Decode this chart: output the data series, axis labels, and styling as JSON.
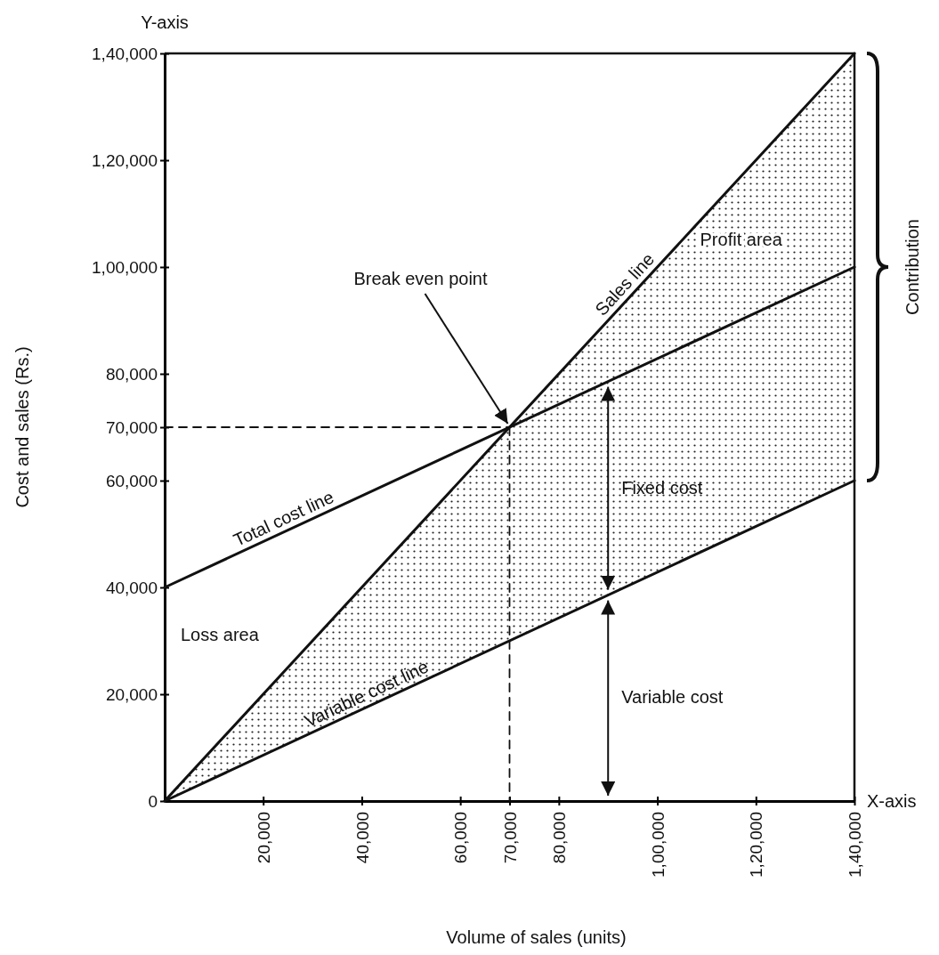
{
  "chart_data": {
    "type": "line",
    "xlabel": "Volume of sales (units)",
    "ylabel": "Cost and sales (Rs.)",
    "xlim": [
      0,
      140000
    ],
    "ylim": [
      0,
      140000
    ],
    "xticks": [
      {
        "value": 20000,
        "label": "20,000"
      },
      {
        "value": 40000,
        "label": "40,000"
      },
      {
        "value": 60000,
        "label": "60,000"
      },
      {
        "value": 70000,
        "label": "70,000"
      },
      {
        "value": 80000,
        "label": "80,000"
      },
      {
        "value": 100000,
        "label": "1,00,000"
      },
      {
        "value": 120000,
        "label": "1,20,000"
      },
      {
        "value": 140000,
        "label": "1,40,000"
      }
    ],
    "yticks": [
      0,
      {
        "value": 20000,
        "label": "20,000"
      },
      {
        "value": 40000,
        "label": "40,000"
      },
      {
        "value": 60000,
        "label": "60,000"
      },
      {
        "value": 70000,
        "label": "70,000"
      },
      {
        "value": 80000,
        "label": "80,000"
      },
      {
        "value": 100000,
        "label": "1,00,000"
      },
      {
        "value": 120000,
        "label": "1,20,000"
      },
      {
        "value": 140000,
        "label": "1,40,000"
      }
    ],
    "series": [
      {
        "name": "Sales line",
        "color": "#111111",
        "x": [
          0,
          140000
        ],
        "values": [
          0,
          140000
        ],
        "lower": [
          0,
          60000
        ],
        "upper": [
          0,
          140000
        ]
      },
      {
        "name": "Total cost line",
        "color": "#111111",
        "x": [
          0,
          140000
        ],
        "values": [
          40000,
          100000
        ]
      },
      {
        "name": "Variable cost line",
        "color": "#111111",
        "x": [
          0,
          140000
        ],
        "values": [
          0,
          60000
        ]
      },
      {
        "color": "#111111",
        "line_style": "dashed",
        "x": [
          0,
          70000
        ],
        "values": [
          70000,
          70000
        ]
      },
      {
        "color": "#111111",
        "line_style": "dashed",
        "x": [
          70000,
          70000
        ],
        "values": [
          70000,
          0
        ]
      }
    ],
    "annotations": [
      {
        "text": "Break even point",
        "x": 70000,
        "y": 70000
      },
      "Fixed cost",
      "Variable cost",
      "Profit area",
      "Loss area",
      "Contribution",
      "X-axis",
      "Y-axis"
    ],
    "legend": false,
    "grid": false
  }
}
